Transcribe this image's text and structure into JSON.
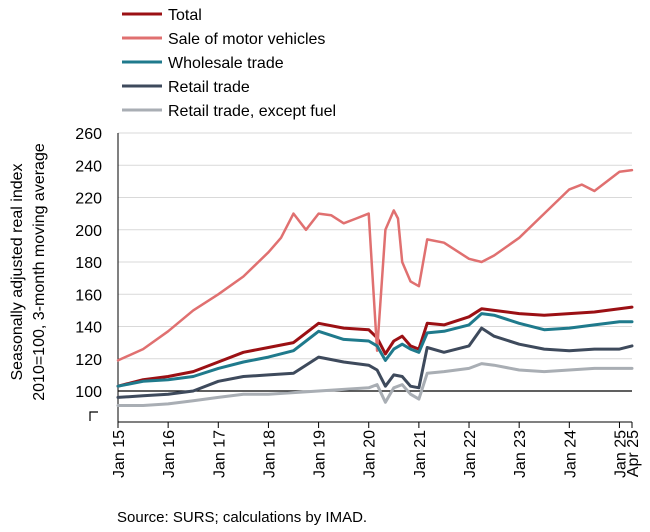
{
  "chart_data": {
    "type": "line",
    "ylabel_lines": [
      "Seasonally adjusted real index",
      "2010=100, 3-month moving average"
    ],
    "ylim": [
      90,
      260
    ],
    "yticks": [
      100,
      120,
      140,
      160,
      180,
      200,
      220,
      240,
      260
    ],
    "xlim": [
      "2015-01",
      "2025-04"
    ],
    "xticks": [
      {
        "x": "2015-01",
        "label": "Jan 15"
      },
      {
        "x": "2016-01",
        "label": "Jan 16"
      },
      {
        "x": "2017-01",
        "label": "Jan 17"
      },
      {
        "x": "2018-01",
        "label": "Jan 18"
      },
      {
        "x": "2019-01",
        "label": "Jan 19"
      },
      {
        "x": "2020-01",
        "label": "Jan 20"
      },
      {
        "x": "2021-01",
        "label": "Jan 21"
      },
      {
        "x": "2022-01",
        "label": "Jan 22"
      },
      {
        "x": "2023-01",
        "label": "Jan 23"
      },
      {
        "x": "2024-01",
        "label": "Jan 24"
      },
      {
        "x": "2025-01",
        "label": "Jan 25"
      },
      {
        "x": "2025-04",
        "label": "Apr 25"
      }
    ],
    "grid": "horizontal",
    "legend_position": "top",
    "reference_line": 100,
    "series": [
      {
        "name": "Total",
        "color": "#9b1014",
        "width": 3,
        "x": [
          "2015-01",
          "2015-07",
          "2016-01",
          "2016-07",
          "2017-01",
          "2017-07",
          "2018-01",
          "2018-07",
          "2019-01",
          "2019-07",
          "2020-01",
          "2020-03",
          "2020-05",
          "2020-07",
          "2020-09",
          "2020-11",
          "2021-01",
          "2021-03",
          "2021-07",
          "2022-01",
          "2022-04",
          "2022-07",
          "2023-01",
          "2023-07",
          "2024-01",
          "2024-07",
          "2025-01",
          "2025-04"
        ],
        "y": [
          103,
          107,
          109,
          112,
          118,
          124,
          127,
          130,
          142,
          139,
          138,
          133,
          123,
          131,
          134,
          128,
          126,
          142,
          141,
          146,
          151,
          150,
          148,
          147,
          148,
          149,
          151,
          152
        ]
      },
      {
        "name": "Sale of motor vehicles",
        "color": "#e07070",
        "width": 2.5,
        "x": [
          "2015-01",
          "2015-07",
          "2016-01",
          "2016-07",
          "2017-01",
          "2017-07",
          "2018-01",
          "2018-04",
          "2018-07",
          "2018-10",
          "2019-01",
          "2019-04",
          "2019-07",
          "2019-10",
          "2020-01",
          "2020-03",
          "2020-05",
          "2020-07",
          "2020-08",
          "2020-09",
          "2020-11",
          "2021-01",
          "2021-03",
          "2021-07",
          "2022-01",
          "2022-04",
          "2022-07",
          "2023-01",
          "2023-07",
          "2024-01",
          "2024-04",
          "2024-07",
          "2025-01",
          "2025-04"
        ],
        "y": [
          119,
          126,
          137,
          150,
          160,
          171,
          186,
          195,
          210,
          200,
          210,
          209,
          204,
          207,
          210,
          125,
          200,
          212,
          207,
          180,
          168,
          165,
          194,
          192,
          182,
          180,
          184,
          195,
          210,
          225,
          228,
          224,
          236,
          237
        ]
      },
      {
        "name": "Wholesale trade",
        "color": "#1f7a8c",
        "width": 3,
        "x": [
          "2015-01",
          "2015-07",
          "2016-01",
          "2016-07",
          "2017-01",
          "2017-07",
          "2018-01",
          "2018-07",
          "2019-01",
          "2019-07",
          "2020-01",
          "2020-03",
          "2020-05",
          "2020-07",
          "2020-09",
          "2020-11",
          "2021-01",
          "2021-03",
          "2021-07",
          "2022-01",
          "2022-04",
          "2022-07",
          "2023-01",
          "2023-07",
          "2024-01",
          "2024-07",
          "2025-01",
          "2025-04"
        ],
        "y": [
          103,
          106,
          107,
          109,
          114,
          118,
          121,
          125,
          137,
          132,
          131,
          128,
          119,
          126,
          129,
          126,
          124,
          136,
          137,
          141,
          148,
          147,
          142,
          138,
          139,
          141,
          143,
          143
        ]
      },
      {
        "name": "Retail trade",
        "color": "#3e4a5c",
        "width": 3,
        "x": [
          "2015-01",
          "2015-07",
          "2016-01",
          "2016-07",
          "2017-01",
          "2017-07",
          "2018-01",
          "2018-07",
          "2019-01",
          "2019-07",
          "2020-01",
          "2020-03",
          "2020-05",
          "2020-07",
          "2020-09",
          "2020-11",
          "2021-01",
          "2021-03",
          "2021-07",
          "2022-01",
          "2022-04",
          "2022-07",
          "2023-01",
          "2023-07",
          "2024-01",
          "2024-07",
          "2025-01",
          "2025-04"
        ],
        "y": [
          96,
          97,
          98,
          100,
          106,
          109,
          110,
          111,
          121,
          118,
          116,
          113,
          103,
          110,
          109,
          103,
          102,
          127,
          124,
          128,
          139,
          134,
          129,
          126,
          125,
          126,
          126,
          128
        ]
      },
      {
        "name": "Retail trade, except fuel",
        "color": "#a9aeb4",
        "width": 3,
        "x": [
          "2015-01",
          "2015-07",
          "2016-01",
          "2016-07",
          "2017-01",
          "2017-07",
          "2018-01",
          "2018-07",
          "2019-01",
          "2019-07",
          "2020-01",
          "2020-03",
          "2020-05",
          "2020-07",
          "2020-09",
          "2020-11",
          "2021-01",
          "2021-03",
          "2021-07",
          "2022-01",
          "2022-04",
          "2022-07",
          "2023-01",
          "2023-07",
          "2024-01",
          "2024-07",
          "2025-01",
          "2025-04"
        ],
        "y": [
          91,
          91,
          92,
          94,
          96,
          98,
          98,
          99,
          100,
          101,
          102,
          104,
          93,
          102,
          104,
          98,
          95,
          111,
          112,
          114,
          117,
          116,
          113,
          112,
          113,
          114,
          114,
          114
        ]
      }
    ]
  },
  "source": "Source: SURS; calculations by IMAD."
}
